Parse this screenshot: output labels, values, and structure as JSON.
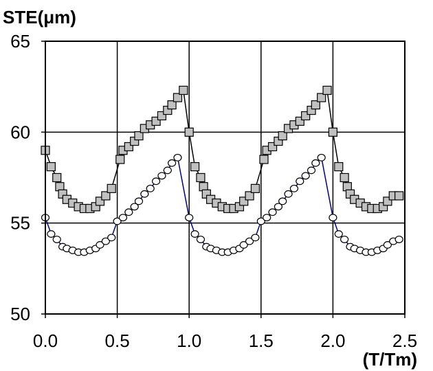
{
  "chart_data": {
    "type": "scatter",
    "title": "",
    "xlabel": "(T/Tm)",
    "ylabel": "STE(μm)",
    "xlim": [
      0.0,
      2.5
    ],
    "ylim": [
      50,
      65
    ],
    "x_ticks": [
      "0.0",
      "0.5",
      "1.0",
      "1.5",
      "2.0",
      "2.5"
    ],
    "y_ticks": [
      "50",
      "55",
      "60",
      "65"
    ],
    "grid": true,
    "legend": "none",
    "colors": {
      "square_fill": "#c0c0c0",
      "square_stroke": "#000000",
      "line_square": "#000000",
      "line_circle": "#000080",
      "circle_fill": "#ffffff"
    },
    "series": [
      {
        "marker": "square",
        "points": [
          [
            0.0,
            59.0
          ],
          [
            0.04,
            58.1
          ],
          [
            0.08,
            57.5
          ],
          [
            0.1,
            57.0
          ],
          [
            0.12,
            56.6
          ],
          [
            0.15,
            56.3
          ],
          [
            0.19,
            56.1
          ],
          [
            0.23,
            55.9
          ],
          [
            0.27,
            55.8
          ],
          [
            0.31,
            55.8
          ],
          [
            0.35,
            55.9
          ],
          [
            0.38,
            56.2
          ],
          [
            0.42,
            56.5
          ],
          [
            0.46,
            56.9
          ],
          [
            0.52,
            58.5
          ],
          [
            0.54,
            59.0
          ],
          [
            0.58,
            59.2
          ],
          [
            0.62,
            59.5
          ],
          [
            0.65,
            59.8
          ],
          [
            0.69,
            60.2
          ],
          [
            0.73,
            60.4
          ],
          [
            0.77,
            60.6
          ],
          [
            0.81,
            60.9
          ],
          [
            0.85,
            61.2
          ],
          [
            0.88,
            61.5
          ],
          [
            0.92,
            61.9
          ],
          [
            0.96,
            62.3
          ],
          [
            1.0,
            60.0
          ],
          [
            1.04,
            58.1
          ],
          [
            1.08,
            57.5
          ],
          [
            1.1,
            57.0
          ],
          [
            1.12,
            56.6
          ],
          [
            1.15,
            56.3
          ],
          [
            1.19,
            56.1
          ],
          [
            1.23,
            55.9
          ],
          [
            1.27,
            55.8
          ],
          [
            1.31,
            55.8
          ],
          [
            1.35,
            55.9
          ],
          [
            1.38,
            56.2
          ],
          [
            1.42,
            56.5
          ],
          [
            1.46,
            56.9
          ],
          [
            1.52,
            58.5
          ],
          [
            1.54,
            59.0
          ],
          [
            1.58,
            59.2
          ],
          [
            1.62,
            59.5
          ],
          [
            1.65,
            59.8
          ],
          [
            1.69,
            60.2
          ],
          [
            1.73,
            60.4
          ],
          [
            1.77,
            60.6
          ],
          [
            1.81,
            60.9
          ],
          [
            1.85,
            61.2
          ],
          [
            1.88,
            61.5
          ],
          [
            1.92,
            61.9
          ],
          [
            1.96,
            62.3
          ],
          [
            2.0,
            60.0
          ],
          [
            2.04,
            58.1
          ],
          [
            2.08,
            57.5
          ],
          [
            2.1,
            57.0
          ],
          [
            2.12,
            56.6
          ],
          [
            2.15,
            56.3
          ],
          [
            2.19,
            56.1
          ],
          [
            2.23,
            55.9
          ],
          [
            2.27,
            55.8
          ],
          [
            2.31,
            55.8
          ],
          [
            2.35,
            55.9
          ],
          [
            2.38,
            56.2
          ],
          [
            2.42,
            56.5
          ],
          [
            2.46,
            56.5
          ]
        ]
      },
      {
        "marker": "circle",
        "points": [
          [
            0.0,
            55.3
          ],
          [
            0.04,
            54.4
          ],
          [
            0.08,
            54.1
          ],
          [
            0.12,
            53.7
          ],
          [
            0.15,
            53.6
          ],
          [
            0.19,
            53.5
          ],
          [
            0.23,
            53.4
          ],
          [
            0.27,
            53.4
          ],
          [
            0.31,
            53.5
          ],
          [
            0.35,
            53.6
          ],
          [
            0.38,
            53.8
          ],
          [
            0.42,
            54.0
          ],
          [
            0.46,
            54.2
          ],
          [
            0.5,
            55.1
          ],
          [
            0.54,
            55.3
          ],
          [
            0.58,
            55.6
          ],
          [
            0.62,
            55.9
          ],
          [
            0.65,
            56.2
          ],
          [
            0.69,
            56.6
          ],
          [
            0.73,
            56.9
          ],
          [
            0.77,
            57.3
          ],
          [
            0.81,
            57.6
          ],
          [
            0.85,
            57.9
          ],
          [
            0.88,
            58.3
          ],
          [
            0.92,
            58.6
          ],
          [
            1.0,
            55.3
          ],
          [
            1.04,
            54.4
          ],
          [
            1.08,
            54.1
          ],
          [
            1.12,
            53.7
          ],
          [
            1.15,
            53.6
          ],
          [
            1.19,
            53.5
          ],
          [
            1.23,
            53.4
          ],
          [
            1.27,
            53.4
          ],
          [
            1.31,
            53.5
          ],
          [
            1.35,
            53.6
          ],
          [
            1.38,
            53.8
          ],
          [
            1.42,
            54.0
          ],
          [
            1.46,
            54.2
          ],
          [
            1.5,
            55.1
          ],
          [
            1.54,
            55.3
          ],
          [
            1.58,
            55.6
          ],
          [
            1.62,
            55.9
          ],
          [
            1.65,
            56.2
          ],
          [
            1.69,
            56.6
          ],
          [
            1.73,
            56.9
          ],
          [
            1.77,
            57.3
          ],
          [
            1.81,
            57.6
          ],
          [
            1.85,
            57.9
          ],
          [
            1.88,
            58.3
          ],
          [
            1.92,
            58.6
          ],
          [
            2.0,
            55.3
          ],
          [
            2.04,
            54.4
          ],
          [
            2.08,
            54.1
          ],
          [
            2.12,
            53.7
          ],
          [
            2.15,
            53.6
          ],
          [
            2.19,
            53.5
          ],
          [
            2.23,
            53.4
          ],
          [
            2.27,
            53.4
          ],
          [
            2.31,
            53.5
          ],
          [
            2.35,
            53.6
          ],
          [
            2.38,
            53.8
          ],
          [
            2.42,
            54.0
          ],
          [
            2.46,
            54.1
          ]
        ]
      }
    ]
  }
}
